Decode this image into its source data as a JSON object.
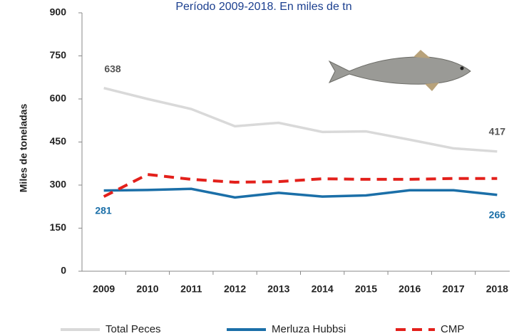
{
  "chart_data": {
    "type": "line",
    "subtitle": "Período 2009-2018. En miles de tn",
    "y_label": "Miles de toneladas",
    "categories": [
      "2009",
      "2010",
      "2011",
      "2012",
      "2013",
      "2014",
      "2015",
      "2016",
      "2017",
      "2018"
    ],
    "series": [
      {
        "name": "Total Peces",
        "color": "#d9d9d9",
        "values": [
          638,
          600,
          565,
          505,
          517,
          485,
          487,
          458,
          428,
          417
        ]
      },
      {
        "name": "Merluza Hubbsi",
        "color": "#1b6fa8",
        "values": [
          281,
          283,
          287,
          257,
          273,
          260,
          264,
          282,
          282,
          266
        ]
      },
      {
        "name": "CMP",
        "color": "#e3201b",
        "dashed": true,
        "values": [
          260,
          337,
          320,
          310,
          312,
          322,
          320,
          320,
          323,
          323
        ]
      }
    ],
    "ylim": [
      0,
      900
    ],
    "yticks": [
      0,
      150,
      300,
      450,
      600,
      750,
      900
    ],
    "grid": false
  }
}
